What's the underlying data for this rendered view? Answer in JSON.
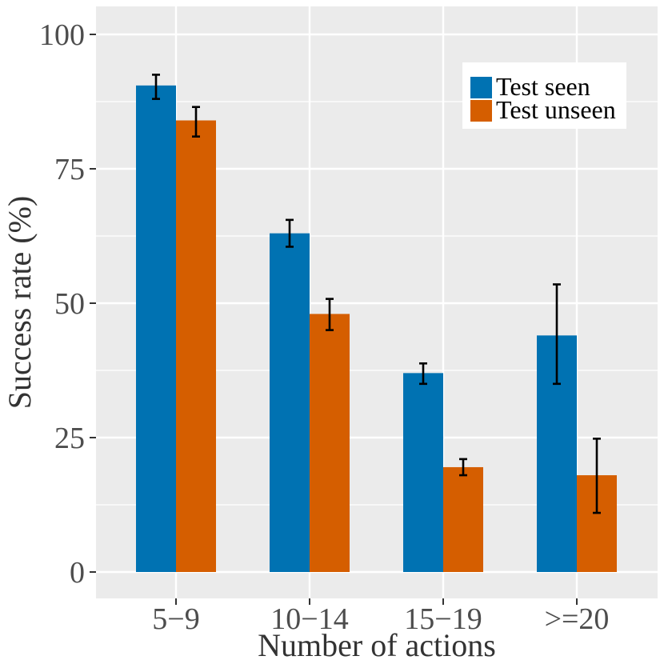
{
  "chart_data": {
    "type": "bar",
    "title": "",
    "xlabel": "Number of actions",
    "ylabel": "Success rate (%)",
    "categories": [
      "5−9",
      "10−14",
      "15−19",
      ">=20"
    ],
    "ylim": [
      -5,
      105
    ],
    "yticks": [
      0,
      25,
      50,
      75,
      100
    ],
    "yminor": [
      12.5,
      37.5,
      62.5,
      87.5
    ],
    "grid": true,
    "legend_position": "top-right",
    "series": [
      {
        "name": "Test seen",
        "color": "#0072B2",
        "values": [
          90.5,
          63.0,
          37.0,
          44.0
        ],
        "err_low": [
          88.0,
          60.5,
          35.0,
          35.0
        ],
        "err_high": [
          92.5,
          65.5,
          38.8,
          53.5
        ]
      },
      {
        "name": "Test unseen",
        "color": "#D55E00",
        "values": [
          84.0,
          48.0,
          19.5,
          18.0
        ],
        "err_low": [
          81.0,
          45.0,
          18.0,
          11.0
        ],
        "err_high": [
          86.5,
          50.8,
          21.0,
          24.8
        ]
      }
    ]
  }
}
